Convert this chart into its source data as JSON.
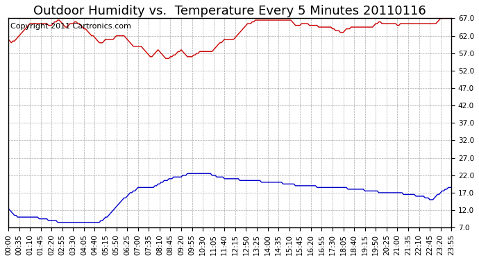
{
  "title": "Outdoor Humidity vs.  Temperature Every 5 Minutes 20110116",
  "copyright_text": "Copyright 2011 Cartronics.com",
  "background_color": "#ffffff",
  "plot_background": "#ffffff",
  "grid_color": "#aaaaaa",
  "red_line_color": "#cc0000",
  "blue_line_color": "#0000cc",
  "y_ticks": [
    7.0,
    12.0,
    17.0,
    22.0,
    27.0,
    32.0,
    37.0,
    42.0,
    47.0,
    52.0,
    57.0,
    62.0,
    67.0
  ],
  "y_min": 7.0,
  "y_max": 67.0,
  "num_points": 288,
  "humidity_data": [
    61.0,
    60.5,
    60.0,
    60.5,
    60.5,
    61.0,
    61.5,
    62.0,
    62.5,
    63.0,
    63.5,
    64.0,
    64.5,
    65.0,
    65.5,
    65.5,
    65.5,
    65.5,
    65.5,
    65.5,
    65.5,
    65.5,
    65.5,
    65.5,
    65.5,
    65.5,
    65.0,
    65.0,
    65.0,
    65.5,
    66.0,
    66.0,
    66.5,
    66.5,
    66.0,
    65.5,
    65.0,
    64.5,
    64.5,
    65.0,
    65.5,
    65.5,
    65.5,
    66.0,
    66.0,
    65.5,
    65.5,
    65.0,
    64.5,
    64.0,
    64.0,
    63.5,
    63.0,
    62.5,
    62.0,
    62.0,
    61.5,
    61.0,
    60.5,
    60.0,
    60.0,
    60.0,
    60.5,
    61.0,
    61.0,
    61.0,
    61.0,
    61.0,
    61.0,
    61.5,
    62.0,
    62.0,
    62.0,
    62.0,
    62.0,
    62.0,
    61.5,
    61.0,
    60.5,
    60.0,
    59.5,
    59.0,
    59.0,
    59.0,
    59.0,
    59.0,
    59.0,
    58.5,
    58.0,
    57.5,
    57.0,
    56.5,
    56.0,
    56.0,
    56.5,
    57.0,
    57.5,
    58.0,
    57.5,
    57.0,
    56.5,
    56.0,
    55.5,
    55.5,
    55.5,
    56.0,
    56.0,
    56.5,
    56.5,
    57.0,
    57.5,
    57.5,
    58.0,
    57.5,
    57.0,
    56.5,
    56.0,
    56.0,
    56.0,
    56.0,
    56.5,
    56.5,
    57.0,
    57.0,
    57.5,
    57.5,
    57.5,
    57.5,
    57.5,
    57.5,
    57.5,
    57.5,
    57.5,
    58.0,
    58.5,
    59.0,
    59.5,
    60.0,
    60.0,
    60.5,
    61.0,
    61.0,
    61.0,
    61.0,
    61.0,
    61.0,
    61.0,
    61.5,
    62.0,
    62.5,
    63.0,
    63.5,
    64.0,
    64.5,
    65.0,
    65.5,
    65.5,
    65.5,
    66.0,
    66.0,
    66.5,
    66.5,
    66.5,
    66.5,
    66.5,
    66.5,
    66.5,
    66.5,
    66.5,
    66.5,
    66.5,
    66.5,
    66.5,
    66.5,
    66.5,
    66.5,
    66.5,
    66.5,
    66.5,
    66.5,
    66.5,
    66.5,
    66.5,
    66.5,
    66.0,
    65.5,
    65.0,
    65.0,
    65.0,
    65.0,
    65.5,
    65.5,
    65.5,
    65.5,
    65.5,
    65.0,
    65.0,
    65.0,
    65.0,
    65.0,
    65.0,
    64.5,
    64.5,
    64.5,
    64.5,
    64.5,
    64.5,
    64.5,
    64.5,
    64.5,
    64.0,
    64.0,
    63.5,
    63.5,
    63.5,
    63.0,
    63.0,
    63.0,
    63.5,
    64.0,
    64.0,
    64.0,
    64.5,
    64.5,
    64.5,
    64.5,
    64.5,
    64.5,
    64.5,
    64.5,
    64.5,
    64.5,
    64.5,
    64.5,
    64.5,
    64.5,
    64.5,
    65.0,
    65.5,
    65.5,
    66.0,
    66.0,
    65.5,
    65.5,
    65.5,
    65.5,
    65.5,
    65.5,
    65.5,
    65.5,
    65.5,
    65.5,
    65.0,
    65.0,
    65.5,
    65.5,
    65.5,
    65.5,
    65.5,
    65.5,
    65.5,
    65.5,
    65.5,
    65.5,
    65.5,
    65.5,
    65.5,
    65.5,
    65.5,
    65.5,
    65.5,
    65.5,
    65.5,
    65.5,
    65.5,
    65.5,
    65.5,
    65.5,
    66.0,
    66.5,
    67.0,
    67.0,
    67.0,
    67.0,
    67.0,
    67.0,
    67.0,
    67.0
  ],
  "temp_data": [
    12.5,
    12.0,
    11.5,
    11.0,
    10.5,
    10.5,
    10.0,
    10.0,
    10.0,
    10.0,
    10.0,
    10.0,
    10.0,
    10.0,
    10.0,
    10.0,
    10.0,
    10.0,
    10.0,
    10.0,
    9.5,
    9.5,
    9.5,
    9.5,
    9.5,
    9.5,
    9.0,
    9.0,
    9.0,
    9.0,
    9.0,
    9.0,
    8.5,
    8.5,
    8.5,
    8.5,
    8.5,
    8.5,
    8.5,
    8.5,
    8.5,
    8.5,
    8.5,
    8.5,
    8.5,
    8.5,
    8.5,
    8.5,
    8.5,
    8.5,
    8.5,
    8.5,
    8.5,
    8.5,
    8.5,
    8.5,
    8.5,
    8.5,
    8.5,
    8.5,
    9.0,
    9.0,
    9.5,
    10.0,
    10.0,
    10.5,
    11.0,
    11.5,
    12.0,
    12.5,
    13.0,
    13.5,
    14.0,
    14.5,
    15.0,
    15.5,
    15.5,
    16.0,
    16.5,
    17.0,
    17.0,
    17.5,
    17.5,
    18.0,
    18.5,
    18.5,
    18.5,
    18.5,
    18.5,
    18.5,
    18.5,
    18.5,
    18.5,
    18.5,
    18.5,
    19.0,
    19.0,
    19.5,
    19.5,
    20.0,
    20.0,
    20.5,
    20.5,
    20.5,
    21.0,
    21.0,
    21.0,
    21.5,
    21.5,
    21.5,
    21.5,
    21.5,
    21.5,
    22.0,
    22.0,
    22.0,
    22.5,
    22.5,
    22.5,
    22.5,
    22.5,
    22.5,
    22.5,
    22.5,
    22.5,
    22.5,
    22.5,
    22.5,
    22.5,
    22.5,
    22.5,
    22.5,
    22.0,
    22.0,
    22.0,
    21.5,
    21.5,
    21.5,
    21.5,
    21.5,
    21.0,
    21.0,
    21.0,
    21.0,
    21.0,
    21.0,
    21.0,
    21.0,
    21.0,
    21.0,
    20.5,
    20.5,
    20.5,
    20.5,
    20.5,
    20.5,
    20.5,
    20.5,
    20.5,
    20.5,
    20.5,
    20.5,
    20.5,
    20.5,
    20.0,
    20.0,
    20.0,
    20.0,
    20.0,
    20.0,
    20.0,
    20.0,
    20.0,
    20.0,
    20.0,
    20.0,
    20.0,
    20.0,
    19.5,
    19.5,
    19.5,
    19.5,
    19.5,
    19.5,
    19.5,
    19.5,
    19.0,
    19.0,
    19.0,
    19.0,
    19.0,
    19.0,
    19.0,
    19.0,
    19.0,
    19.0,
    19.0,
    19.0,
    19.0,
    19.0,
    18.5,
    18.5,
    18.5,
    18.5,
    18.5,
    18.5,
    18.5,
    18.5,
    18.5,
    18.5,
    18.5,
    18.5,
    18.5,
    18.5,
    18.5,
    18.5,
    18.5,
    18.5,
    18.5,
    18.5,
    18.0,
    18.0,
    18.0,
    18.0,
    18.0,
    18.0,
    18.0,
    18.0,
    18.0,
    18.0,
    18.0,
    17.5,
    17.5,
    17.5,
    17.5,
    17.5,
    17.5,
    17.5,
    17.5,
    17.5,
    17.0,
    17.0,
    17.0,
    17.0,
    17.0,
    17.0,
    17.0,
    17.0,
    17.0,
    17.0,
    17.0,
    17.0,
    17.0,
    17.0,
    17.0,
    17.0,
    16.5,
    16.5,
    16.5,
    16.5,
    16.5,
    16.5,
    16.5,
    16.5,
    16.0,
    16.0,
    16.0,
    16.0,
    16.0,
    16.0,
    15.5,
    15.5,
    15.5,
    15.0,
    15.0,
    15.0,
    15.5,
    16.0,
    16.5,
    16.5,
    17.0,
    17.5,
    17.5,
    18.0,
    18.0,
    18.5,
    18.5,
    18.5
  ],
  "x_tick_labels": [
    "00:00",
    "00:35",
    "01:10",
    "01:45",
    "02:20",
    "02:55",
    "03:30",
    "04:05",
    "04:40",
    "05:15",
    "05:50",
    "06:25",
    "07:00",
    "07:35",
    "08:10",
    "08:45",
    "09:20",
    "09:55",
    "10:30",
    "11:05",
    "11:40",
    "12:15",
    "12:50",
    "13:25",
    "14:00",
    "14:35",
    "15:10",
    "15:45",
    "16:20",
    "16:55",
    "17:30",
    "18:05",
    "18:40",
    "19:15",
    "19:50",
    "20:25",
    "21:00",
    "21:35",
    "22:10",
    "22:45",
    "23:20",
    "23:55"
  ],
  "title_fontsize": 13,
  "tick_fontsize": 7.5,
  "copyright_fontsize": 8
}
